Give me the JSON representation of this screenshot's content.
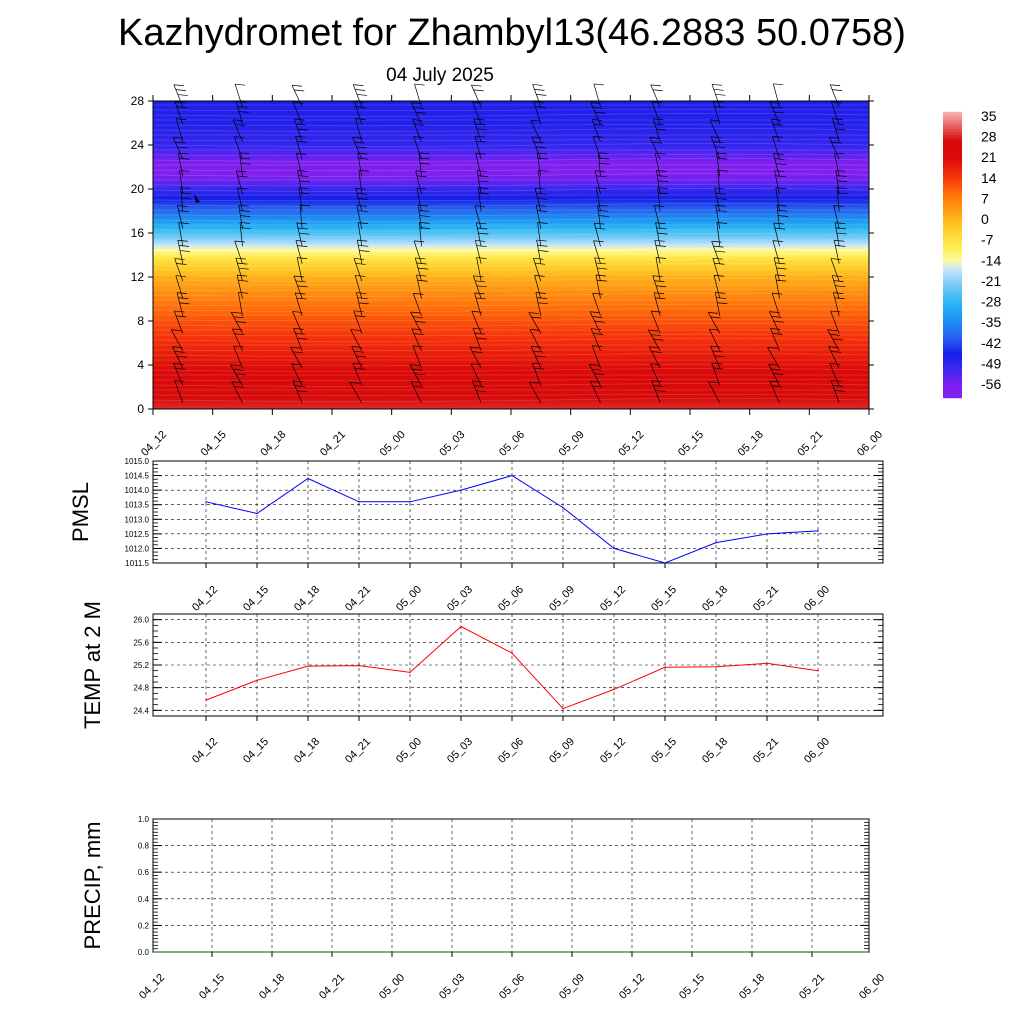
{
  "title": "Kazhydromet for Zhambyl13(46.2883 50.0758)",
  "subtitle": "04 July 2025",
  "time_labels": [
    "04_12",
    "04_15",
    "04_18",
    "04_21",
    "05_00",
    "05_03",
    "05_06",
    "05_09",
    "05_12",
    "05_15",
    "05_18",
    "05_21",
    "06_00"
  ],
  "colors": {
    "pmsl_line": "#0000ff",
    "temp_line": "#ff0000",
    "precip_line": "#006400",
    "grid": "#000000"
  },
  "chart_data": [
    {
      "type": "heatmap",
      "name": "temperature-cross-section",
      "x": [
        "04_12",
        "04_15",
        "04_18",
        "04_21",
        "05_00",
        "05_03",
        "05_06",
        "05_09",
        "05_12",
        "05_15",
        "05_18",
        "05_21",
        "06_00"
      ],
      "ylim": [
        0,
        28
      ],
      "y_ticks": [
        0,
        4,
        8,
        12,
        16,
        20,
        24,
        28
      ],
      "grid": false,
      "overlay": "wind-barbs",
      "colorbar": {
        "labels": [
          "35",
          "28",
          "21",
          "14",
          "7",
          "0",
          "-7",
          "-14",
          "-21",
          "-28",
          "-35",
          "-42",
          "-49",
          "-56"
        ],
        "range": [
          -60,
          38
        ],
        "placement": "right"
      },
      "profile_y": [
        0,
        2,
        4,
        6,
        8,
        10,
        12,
        13.5,
        15,
        16.5,
        18,
        19.5,
        21,
        22,
        23,
        24,
        26,
        28
      ],
      "profile_values": [
        30,
        26,
        21,
        17,
        13,
        8,
        2,
        -5,
        -17,
        -28,
        -38,
        -47,
        -55,
        -58,
        -53,
        -49,
        -47,
        -46
      ]
    },
    {
      "type": "line",
      "name": "pmsl",
      "ylabel": "PMSL",
      "x": [
        "04_12",
        "04_15",
        "04_18",
        "04_21",
        "05_00",
        "05_03",
        "05_06",
        "05_09",
        "05_12",
        "05_15",
        "05_18",
        "05_21",
        "06_00"
      ],
      "ylim": [
        1011.5,
        1015.0
      ],
      "y_ticks": [
        "1011.5",
        "1012.0",
        "1012.5",
        "1013.0",
        "1013.5",
        "1014.0",
        "1014.5",
        "1015.0"
      ],
      "grid": true,
      "values": [
        1013.6,
        1013.2,
        1014.4,
        1013.6,
        1013.6,
        1014.0,
        1014.5,
        1013.4,
        1012.0,
        1011.5,
        1012.2,
        1012.5,
        1012.6
      ]
    },
    {
      "type": "line",
      "name": "temp",
      "ylabel": "TEMP at 2 M",
      "x": [
        "04_12",
        "04_15",
        "04_18",
        "04_21",
        "05_00",
        "05_03",
        "05_06",
        "05_09",
        "05_12",
        "05_15",
        "05_18",
        "05_21",
        "06_00"
      ],
      "ylim": [
        24.3,
        26.1
      ],
      "y_ticks": [
        "24.4",
        "24.8",
        "25.2",
        "25.6",
        "26.0"
      ],
      "grid": true,
      "values": [
        24.58,
        24.93,
        25.18,
        25.19,
        25.07,
        25.88,
        25.41,
        24.43,
        24.77,
        25.16,
        25.17,
        25.23,
        25.1
      ]
    },
    {
      "type": "line",
      "name": "precip",
      "ylabel": "PRECIP, mm",
      "x": [
        "04_12",
        "04_15",
        "04_18",
        "04_21",
        "05_00",
        "05_03",
        "05_06",
        "05_09",
        "05_12",
        "05_15",
        "05_18",
        "05_21",
        "06_00"
      ],
      "ylim": [
        0,
        1
      ],
      "y_ticks": [
        "0.0",
        "0.2",
        "0.4",
        "0.6",
        "0.8",
        "1.0"
      ],
      "grid": true,
      "values": [
        0,
        0,
        0,
        0,
        0,
        0,
        0,
        0,
        0,
        0,
        0,
        0,
        0
      ]
    }
  ]
}
